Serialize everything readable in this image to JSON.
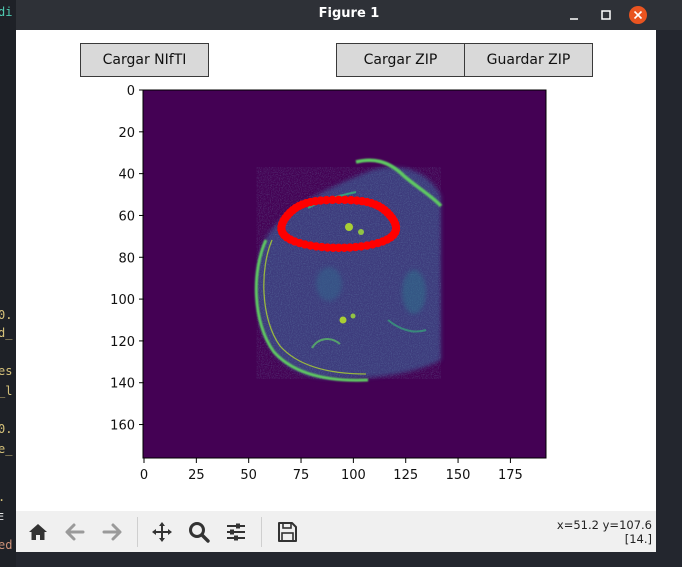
{
  "window": {
    "title": "Figure 1"
  },
  "editor_fragments": [
    "di",
    "0.",
    "d_",
    "es",
    "_l",
    "0.",
    "e_",
    ".",
    "E",
    "ed"
  ],
  "buttons": {
    "cargar_nifti": "Cargar NIfTI",
    "cargar_zip": "Cargar ZIP",
    "guardar_zip": "Guardar ZIP"
  },
  "chart_data": {
    "type": "heatmap",
    "colormap": "viridis",
    "x_ticks": [
      "0",
      "25",
      "50",
      "75",
      "100",
      "125",
      "150",
      "175"
    ],
    "y_ticks": [
      "0",
      "20",
      "40",
      "60",
      "80",
      "100",
      "120",
      "140",
      "160"
    ],
    "xlim": [
      0,
      192
    ],
    "ylim": [
      176,
      0
    ],
    "overlay": {
      "name": "contour",
      "color": "#ff0000",
      "center": [
        93,
        64
      ],
      "semi_axes": [
        27,
        12.5
      ]
    }
  },
  "toolbar": {
    "coords_line1": "x=51.2 y=107.6",
    "coords_line2": "[14.]"
  }
}
